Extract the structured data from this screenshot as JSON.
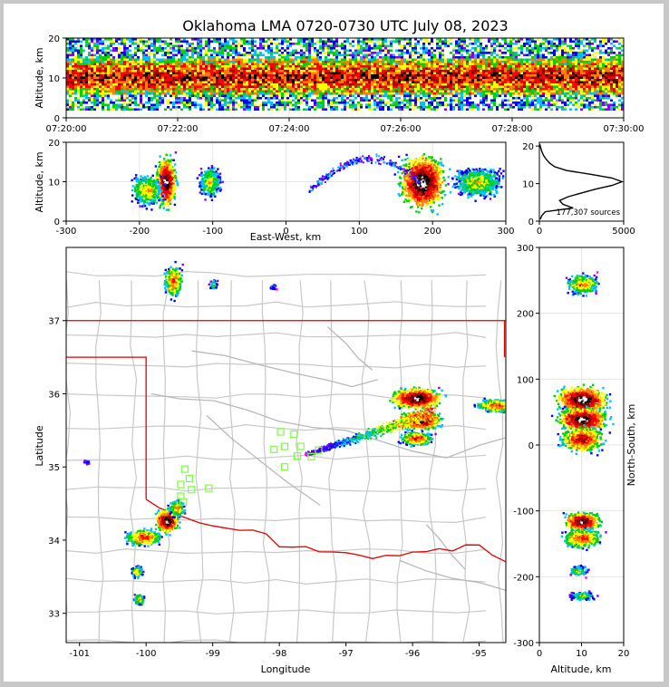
{
  "title": "Oklahoma LMA 0720-0730 UTC July 08, 2023",
  "chart_data": [
    {
      "panel": "time-height",
      "type": "heatmap",
      "ylabel": "Altitude, km",
      "x_ticks": [
        "07:20:00",
        "07:22:00",
        "07:24:00",
        "07:26:00",
        "07:28:00",
        "07:30:00"
      ],
      "xlim": [
        "07:20:00",
        "07:30:00"
      ],
      "y_ticks": [
        0,
        10,
        20
      ],
      "ylim": [
        0,
        20
      ],
      "source_altitude_range_km": [
        2,
        20
      ],
      "dense_altitude_band_km": [
        6,
        15
      ]
    },
    {
      "panel": "east-west-altitude",
      "type": "heatmap",
      "xlabel": "East-West, km",
      "ylabel": "Altitude, km",
      "x_ticks": [
        -300,
        -200,
        -100,
        0,
        100,
        200,
        300
      ],
      "xlim": [
        -300,
        300
      ],
      "y_ticks": [
        0,
        10,
        20
      ],
      "ylim": [
        0,
        20
      ],
      "clusters": [
        {
          "x_km": -165,
          "alt_km": 10
        },
        {
          "x_km": -190,
          "alt_km": 8
        },
        {
          "x_km": -105,
          "alt_km": 10
        },
        {
          "x_km": 185,
          "alt_km": 10
        },
        {
          "x_km": 260,
          "alt_km": 10
        }
      ]
    },
    {
      "panel": "altitude-histogram",
      "type": "line",
      "annotation": "177,307 sources",
      "x_ticks": [
        0,
        5000
      ],
      "xlim": [
        0,
        5000
      ],
      "y_ticks": [
        0,
        10,
        20
      ],
      "ylim": [
        0,
        21
      ],
      "profile": [
        {
          "alt": 0.5,
          "count": 50
        },
        {
          "alt": 1.5,
          "count": 150
        },
        {
          "alt": 2.5,
          "count": 350
        },
        {
          "alt": 3.5,
          "count": 2000
        },
        {
          "alt": 4.5,
          "count": 1400
        },
        {
          "alt": 5.5,
          "count": 1200
        },
        {
          "alt": 6.5,
          "count": 1700
        },
        {
          "alt": 7.5,
          "count": 2500
        },
        {
          "alt": 8.5,
          "count": 3300
        },
        {
          "alt": 9.5,
          "count": 4300
        },
        {
          "alt": 10.5,
          "count": 4900
        },
        {
          "alt": 11.5,
          "count": 4300
        },
        {
          "alt": 12.5,
          "count": 3000
        },
        {
          "alt": 13.5,
          "count": 1600
        },
        {
          "alt": 14.5,
          "count": 900
        },
        {
          "alt": 15.5,
          "count": 600
        },
        {
          "alt": 16.5,
          "count": 400
        },
        {
          "alt": 17.5,
          "count": 250
        },
        {
          "alt": 18.5,
          "count": 150
        },
        {
          "alt": 19.5,
          "count": 80
        },
        {
          "alt": 20.5,
          "count": 20
        }
      ]
    },
    {
      "panel": "plan-view-map",
      "type": "scatter",
      "xlabel": "Longitude",
      "ylabel": "Latitude",
      "x_ticks": [
        -101,
        -100,
        -99,
        -98,
        -97,
        -96,
        -95
      ],
      "xlim": [
        -101.2,
        -94.6
      ],
      "y_ticks": [
        33,
        34,
        35,
        36,
        37
      ],
      "ylim": [
        32.6,
        38.0
      ],
      "stations": [
        {
          "lon": -97.98,
          "lat": 35.48
        },
        {
          "lon": -97.78,
          "lat": 35.45
        },
        {
          "lon": -97.92,
          "lat": 35.28
        },
        {
          "lon": -98.08,
          "lat": 35.24
        },
        {
          "lon": -97.68,
          "lat": 35.28
        },
        {
          "lon": -97.73,
          "lat": 35.15
        },
        {
          "lon": -97.52,
          "lat": 35.14
        },
        {
          "lon": -97.41,
          "lat": 35.23
        },
        {
          "lon": -97.92,
          "lat": 35.0
        },
        {
          "lon": -99.42,
          "lat": 34.97
        },
        {
          "lon": -99.35,
          "lat": 34.84
        },
        {
          "lon": -99.48,
          "lat": 34.76
        },
        {
          "lon": -99.32,
          "lat": 34.69
        },
        {
          "lon": -99.48,
          "lat": 34.6
        },
        {
          "lon": -99.44,
          "lat": 34.52
        },
        {
          "lon": -99.06,
          "lat": 34.71
        }
      ],
      "clusters": [
        {
          "lon": -99.6,
          "lat": 37.55
        },
        {
          "lon": -99.0,
          "lat": 37.5
        },
        {
          "lon": -98.1,
          "lat": 37.47
        },
        {
          "lon": -95.95,
          "lat": 35.95
        },
        {
          "lon": -95.9,
          "lat": 35.65
        },
        {
          "lon": -95.95,
          "lat": 35.4
        },
        {
          "lon": -94.75,
          "lat": 35.85
        },
        {
          "lon": -100.05,
          "lat": 34.05
        },
        {
          "lon": -99.7,
          "lat": 34.27
        },
        {
          "lon": -99.55,
          "lat": 34.45
        },
        {
          "lon": -100.15,
          "lat": 33.58
        },
        {
          "lon": -100.12,
          "lat": 33.2
        },
        {
          "lon": -100.9,
          "lat": 35.08
        }
      ]
    },
    {
      "panel": "altitude-north-south",
      "type": "heatmap",
      "xlabel": "Altitude, km",
      "ylabel": "North-South, km",
      "x_ticks": [
        0,
        10,
        20
      ],
      "xlim": [
        0,
        20
      ],
      "y_ticks": [
        -300,
        -200,
        -100,
        0,
        100,
        200,
        300
      ],
      "ylim": [
        -300,
        300
      ],
      "clusters": [
        {
          "alt_km": 10,
          "y_km": 245
        },
        {
          "alt_km": 10,
          "y_km": 70
        },
        {
          "alt_km": 10,
          "y_km": 40
        },
        {
          "alt_km": 10,
          "y_km": 10
        },
        {
          "alt_km": 10,
          "y_km": -115
        },
        {
          "alt_km": 10,
          "y_km": -140
        },
        {
          "alt_km": 9,
          "y_km": -190
        },
        {
          "alt_km": 10,
          "y_km": -228
        }
      ]
    }
  ],
  "colors": {
    "background": "#ffffff",
    "frame": "#c8c8c8",
    "state_border": "#e00000",
    "county_lines": "#c8c8c8",
    "station_marker": "#7fff3f",
    "grid": "#e6e6e6",
    "density_scale": [
      "#ff00ff",
      "#8000ff",
      "#0000ff",
      "#00c0ff",
      "#00d000",
      "#ffff00",
      "#ff8000",
      "#ff0000",
      "#a00000",
      "#000000",
      "#ffffff"
    ]
  }
}
